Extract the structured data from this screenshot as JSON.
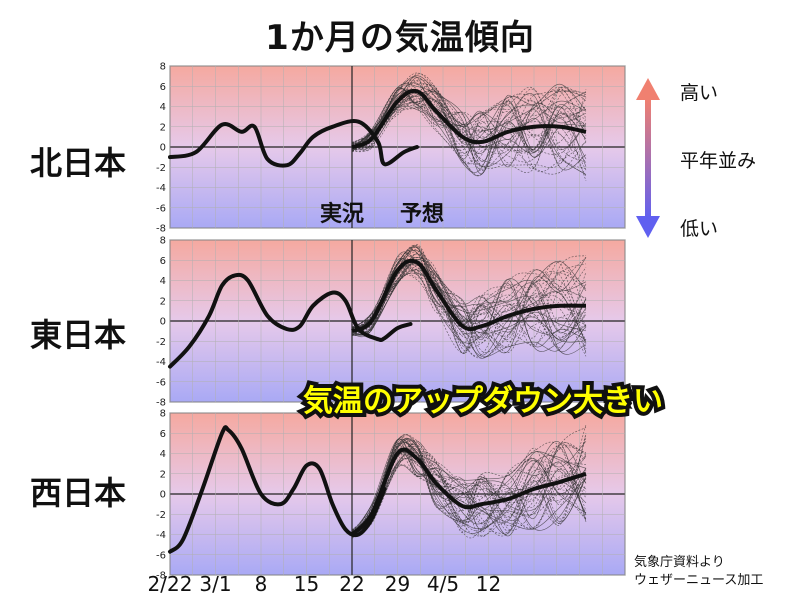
{
  "title": "1か月の気温傾向",
  "legend": {
    "high": "高い",
    "normal": "平年並み",
    "low": "低い"
  },
  "annotations": {
    "actual": "実況",
    "forecast": "予想",
    "highlight": "気温のアップダウン大きい"
  },
  "credit": {
    "line1": "気象庁資料より",
    "line2": "ウェザーニュース加工"
  },
  "x_tick_labels": [
    "2/22",
    "3/1",
    "8",
    "15",
    "22",
    "29",
    "4/5",
    "12"
  ],
  "y_tick_labels": [
    "8",
    "6",
    "4",
    "2",
    "0",
    "-2",
    "-4",
    "-6",
    "-8"
  ],
  "colors": {
    "above_normal": "#f5a9a0",
    "below_normal": "#a9a9f5",
    "arrow_top": "#f08070",
    "arrow_bottom": "#6060f0",
    "highlight_text": "#ffff00"
  },
  "chart_data": [
    {
      "type": "line",
      "region": "北日本",
      "x_unit": "day index from 2/22",
      "ylim": [
        -8,
        8
      ],
      "forecast_start_day": 28,
      "observed": {
        "x": [
          0,
          4,
          8,
          11,
          13,
          15,
          18,
          20,
          22,
          25,
          29,
          32,
          33,
          36,
          38
        ],
        "y": [
          -1.0,
          -0.5,
          2.2,
          1.5,
          2.0,
          -1.2,
          -1.8,
          -0.6,
          1.0,
          2.0,
          2.5,
          0.5,
          -1.7,
          -0.5,
          0.0
        ]
      },
      "ensemble_mean": {
        "x": [
          28,
          31,
          35,
          38,
          41,
          45,
          48,
          52,
          56,
          60,
          64
        ],
        "y": [
          0.0,
          0.8,
          4.5,
          5.5,
          3.5,
          1.0,
          0.5,
          1.5,
          2.0,
          2.0,
          1.5
        ]
      },
      "ensemble_spread": {
        "high": [
          6.5,
          7.5,
          6.0,
          5.5,
          6.0
        ],
        "low": [
          -3.0,
          -4.0,
          -4.5,
          -5.0,
          -5.0
        ]
      }
    },
    {
      "type": "line",
      "region": "東日本",
      "x_unit": "day index from 2/22",
      "ylim": [
        -8,
        8
      ],
      "forecast_start_day": 28,
      "observed": {
        "x": [
          0,
          3,
          6,
          8,
          10,
          12,
          15,
          18,
          20,
          22,
          25,
          27,
          29,
          32,
          33,
          35,
          37
        ],
        "y": [
          -4.5,
          -2.5,
          0.5,
          3.5,
          4.5,
          4.0,
          0.5,
          -0.8,
          -0.5,
          1.5,
          2.8,
          2.0,
          -0.8,
          -1.8,
          -1.7,
          -0.7,
          -0.3
        ]
      },
      "ensemble_mean": {
        "x": [
          28,
          31,
          35,
          38,
          41,
          45,
          48,
          52,
          56,
          60,
          64
        ],
        "y": [
          -1.0,
          0.0,
          5.0,
          5.8,
          3.0,
          -0.5,
          -0.5,
          0.5,
          1.2,
          1.5,
          1.5
        ]
      },
      "ensemble_spread": {
        "high": [
          6.5,
          7.5,
          6.0,
          5.5,
          6.5
        ],
        "low": [
          -3.5,
          -4.0,
          -4.5,
          -4.5,
          -4.0
        ]
      }
    },
    {
      "type": "line",
      "region": "西日本",
      "x_unit": "day index from 2/22",
      "ylim": [
        -8,
        8
      ],
      "forecast_start_day": 28,
      "observed": {
        "x": [
          0,
          2,
          5,
          8,
          9,
          11,
          14,
          17,
          19,
          21,
          23,
          25,
          27,
          29,
          31,
          33
        ],
        "y": [
          -5.7,
          -4.5,
          0.5,
          6.0,
          6.3,
          4.5,
          0.0,
          -1.0,
          0.5,
          2.8,
          2.5,
          -1.0,
          -3.5,
          -4.0,
          -2.5,
          0.5
        ]
      },
      "ensemble_mean": {
        "x": [
          28,
          31,
          35,
          38,
          41,
          45,
          48,
          52,
          56,
          60,
          64
        ],
        "y": [
          -4.0,
          -2.0,
          4.0,
          3.5,
          1.0,
          -1.2,
          -1.0,
          -0.5,
          0.5,
          1.2,
          2.0
        ]
      },
      "ensemble_spread": {
        "high": [
          6.0,
          6.5,
          5.5,
          5.0,
          6.0
        ],
        "low": [
          -3.5,
          -4.5,
          -5.0,
          -5.5,
          -4.5
        ]
      }
    }
  ]
}
